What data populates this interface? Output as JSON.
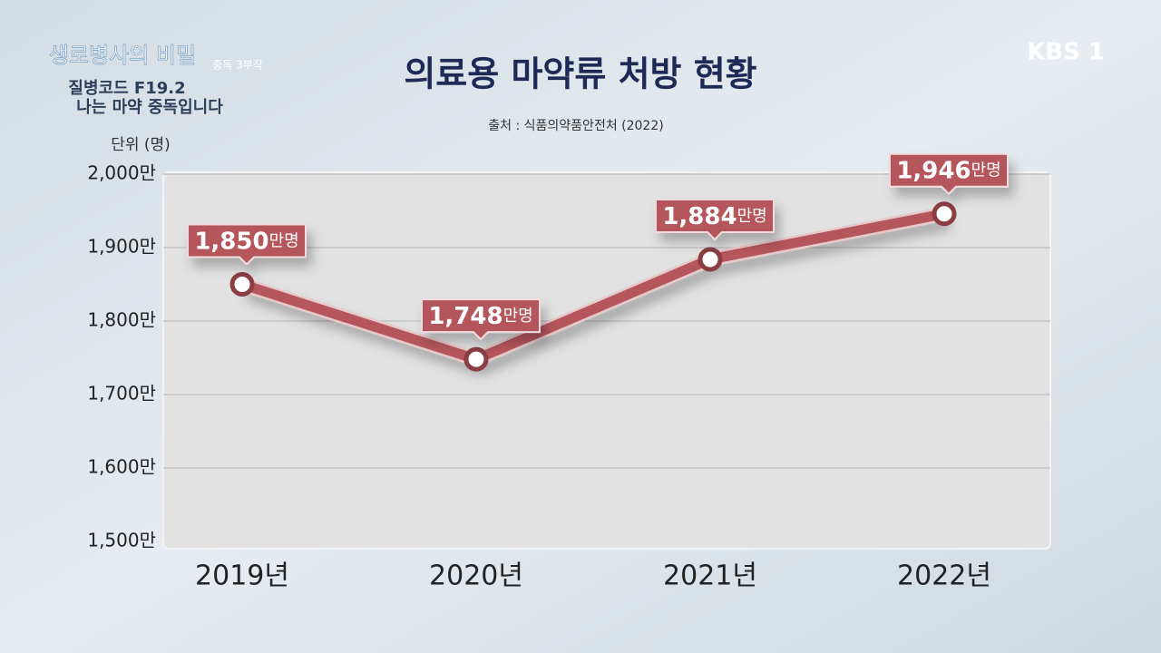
{
  "header": {
    "program": "생로병사의 비밀",
    "series_note": "중독 3부작",
    "episode_code": "질병코드 F19.2",
    "episode_title": "나는 마약 중독입니다",
    "channel": "KBS 1"
  },
  "chart_data": {
    "type": "line",
    "title": "의료용 마약류 처방 현황",
    "subtitle": "출처 : 식품의약품안전처 (2022)",
    "unit_label": "단위 (명)",
    "categories": [
      "2019년",
      "2020년",
      "2021년",
      "2022년"
    ],
    "values": [
      1850,
      1748,
      1884,
      1946
    ],
    "value_labels": [
      "1,850",
      "1,748",
      "1,884",
      "1,946"
    ],
    "value_unit": "만명",
    "color": "#b5575b",
    "ylim": [
      1500,
      2000
    ],
    "yticks": [
      {
        "value": 1500,
        "label": "1,500만"
      },
      {
        "value": 1600,
        "label": "1,600만"
      },
      {
        "value": 1700,
        "label": "1,700만"
      },
      {
        "value": 1800,
        "label": "1,800만"
      },
      {
        "value": 1900,
        "label": "1,900만"
      },
      {
        "value": 2000,
        "label": "2,000만"
      }
    ],
    "grid": true
  }
}
